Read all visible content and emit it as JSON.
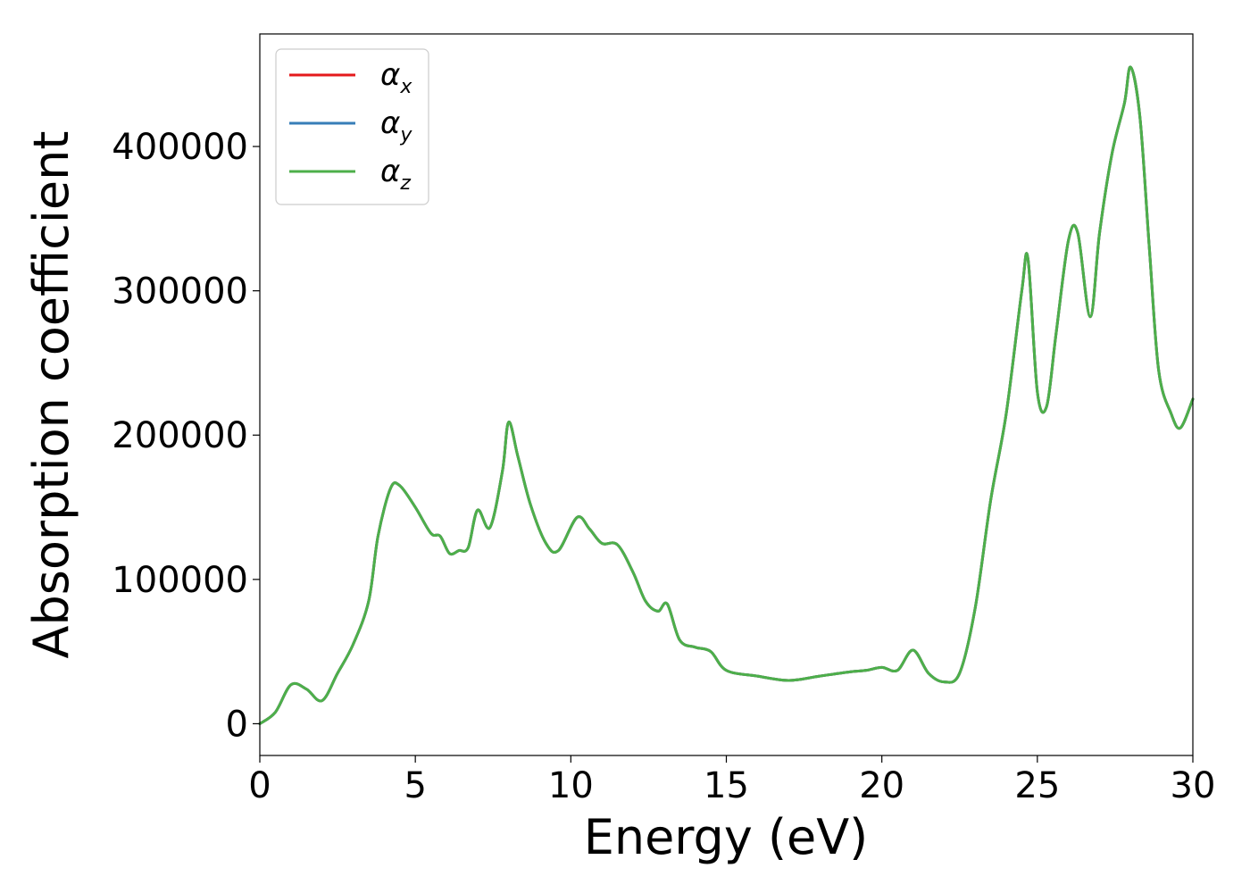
{
  "chart_data": {
    "type": "line",
    "title": "",
    "xlabel": "Energy (eV)",
    "ylabel": "Absorption coefficient",
    "xlim": [
      0,
      30
    ],
    "ylim": [
      -22000,
      478000
    ],
    "xticks": [
      0,
      5,
      10,
      15,
      20,
      25,
      30
    ],
    "xtick_labels": [
      "0",
      "5",
      "10",
      "15",
      "20",
      "25",
      "30"
    ],
    "yticks": [
      0,
      100000,
      200000,
      300000,
      400000
    ],
    "ytick_labels": [
      "0",
      "100000",
      "200000",
      "300000",
      "400000"
    ],
    "grid": false,
    "legend_position": "top-left",
    "series": [
      {
        "name": "α_x",
        "legend_base": "α",
        "legend_sub": "x",
        "color": "#e41a1c",
        "x": [
          0,
          0.5,
          1.0,
          1.5,
          2.0,
          2.5,
          3.0,
          3.5,
          3.8,
          4.2,
          4.5,
          5.0,
          5.5,
          5.8,
          6.1,
          6.4,
          6.7,
          7.0,
          7.4,
          7.8,
          8.0,
          8.3,
          8.7,
          9.2,
          9.6,
          10.2,
          10.6,
          11.0,
          11.5,
          12.0,
          12.4,
          12.8,
          13.1,
          13.5,
          14.0,
          14.5,
          15.0,
          16.0,
          17.0,
          18.0,
          19.0,
          19.5,
          20.0,
          20.5,
          21.0,
          21.5,
          22.0,
          22.5,
          23.0,
          23.5,
          24.0,
          24.5,
          24.7,
          25.0,
          25.3,
          25.6,
          26.0,
          26.3,
          26.7,
          27.0,
          27.4,
          27.8,
          28.0,
          28.3,
          28.6,
          28.9,
          29.3,
          29.6,
          30.0
        ],
        "values": [
          0,
          8000,
          27000,
          24000,
          16000,
          35000,
          55000,
          85000,
          130000,
          163000,
          165000,
          150000,
          132000,
          130000,
          118000,
          120000,
          122000,
          148000,
          136000,
          175000,
          209000,
          185000,
          152000,
          125000,
          120000,
          143000,
          135000,
          125000,
          124000,
          105000,
          85000,
          78000,
          83000,
          58000,
          53000,
          50000,
          37000,
          33000,
          30000,
          33000,
          36000,
          37000,
          39000,
          37000,
          51000,
          35000,
          29000,
          35000,
          80000,
          155000,
          215000,
          300000,
          322000,
          230000,
          220000,
          270000,
          335000,
          340000,
          282000,
          340000,
          395000,
          430000,
          455000,
          420000,
          330000,
          245000,
          215000,
          205000,
          225000
        ]
      },
      {
        "name": "α_y",
        "legend_base": "α",
        "legend_sub": "y",
        "color": "#377eb8",
        "x": [
          0,
          0.5,
          1.0,
          1.5,
          2.0,
          2.5,
          3.0,
          3.5,
          3.8,
          4.2,
          4.5,
          5.0,
          5.5,
          5.8,
          6.1,
          6.4,
          6.7,
          7.0,
          7.4,
          7.8,
          8.0,
          8.3,
          8.7,
          9.2,
          9.6,
          10.2,
          10.6,
          11.0,
          11.5,
          12.0,
          12.4,
          12.8,
          13.1,
          13.5,
          14.0,
          14.5,
          15.0,
          16.0,
          17.0,
          18.0,
          19.0,
          19.5,
          20.0,
          20.5,
          21.0,
          21.5,
          22.0,
          22.5,
          23.0,
          23.5,
          24.0,
          24.5,
          24.7,
          25.0,
          25.3,
          25.6,
          26.0,
          26.3,
          26.7,
          27.0,
          27.4,
          27.8,
          28.0,
          28.3,
          28.6,
          28.9,
          29.3,
          29.6,
          30.0
        ],
        "values": [
          0,
          8000,
          27000,
          24000,
          16000,
          35000,
          55000,
          85000,
          130000,
          163000,
          165000,
          150000,
          132000,
          130000,
          118000,
          120000,
          122000,
          148000,
          136000,
          175000,
          209000,
          185000,
          152000,
          125000,
          120000,
          143000,
          135000,
          125000,
          124000,
          105000,
          85000,
          78000,
          83000,
          58000,
          53000,
          50000,
          37000,
          33000,
          30000,
          33000,
          36000,
          37000,
          39000,
          37000,
          51000,
          35000,
          29000,
          35000,
          80000,
          155000,
          215000,
          300000,
          322000,
          230000,
          220000,
          270000,
          335000,
          340000,
          282000,
          340000,
          395000,
          430000,
          455000,
          420000,
          330000,
          245000,
          215000,
          205000,
          225000
        ]
      },
      {
        "name": "α_z",
        "legend_base": "α",
        "legend_sub": "z",
        "color": "#4daf4a",
        "x": [
          0,
          0.5,
          1.0,
          1.5,
          2.0,
          2.5,
          3.0,
          3.5,
          3.8,
          4.2,
          4.5,
          5.0,
          5.5,
          5.8,
          6.1,
          6.4,
          6.7,
          7.0,
          7.4,
          7.8,
          8.0,
          8.3,
          8.7,
          9.2,
          9.6,
          10.2,
          10.6,
          11.0,
          11.5,
          12.0,
          12.4,
          12.8,
          13.1,
          13.5,
          14.0,
          14.5,
          15.0,
          16.0,
          17.0,
          18.0,
          19.0,
          19.5,
          20.0,
          20.5,
          21.0,
          21.5,
          22.0,
          22.5,
          23.0,
          23.5,
          24.0,
          24.5,
          24.7,
          25.0,
          25.3,
          25.6,
          26.0,
          26.3,
          26.7,
          27.0,
          27.4,
          27.8,
          28.0,
          28.3,
          28.6,
          28.9,
          29.3,
          29.6,
          30.0
        ],
        "values": [
          0,
          8000,
          27000,
          24000,
          16000,
          35000,
          55000,
          85000,
          130000,
          163000,
          165000,
          150000,
          132000,
          130000,
          118000,
          120000,
          122000,
          148000,
          136000,
          175000,
          209000,
          185000,
          152000,
          125000,
          120000,
          143000,
          135000,
          125000,
          124000,
          105000,
          85000,
          78000,
          83000,
          58000,
          53000,
          50000,
          37000,
          33000,
          30000,
          33000,
          36000,
          37000,
          39000,
          37000,
          51000,
          35000,
          29000,
          35000,
          80000,
          155000,
          215000,
          300000,
          322000,
          230000,
          220000,
          270000,
          335000,
          340000,
          282000,
          340000,
          395000,
          430000,
          455000,
          420000,
          330000,
          245000,
          215000,
          205000,
          225000
        ]
      }
    ]
  }
}
